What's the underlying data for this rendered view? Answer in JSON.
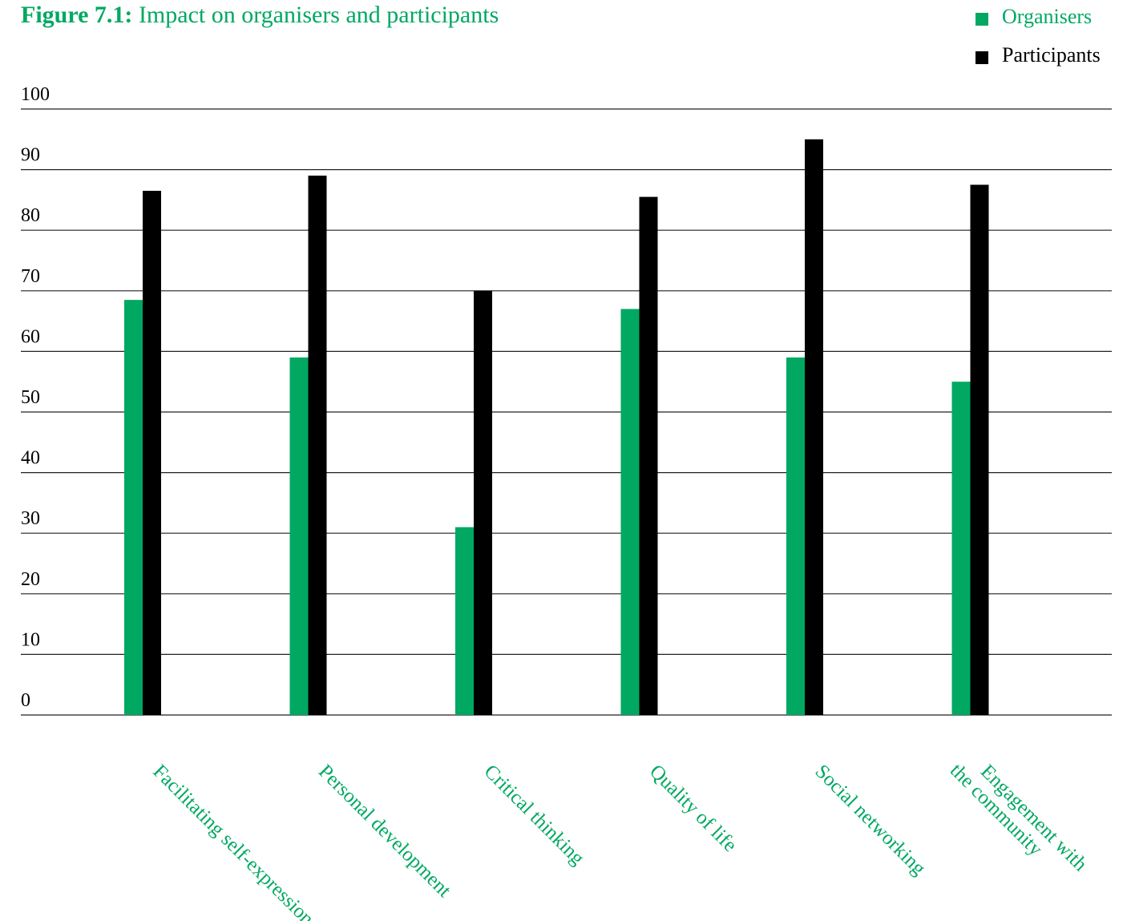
{
  "title": {
    "prefix": "Figure 7.1:",
    "text": "Impact on organisers and participants"
  },
  "colors": {
    "organisers": "#00a862",
    "participants": "#000000",
    "label": "#00a862",
    "grid": "#222222"
  },
  "legend": [
    {
      "name": "Organisers",
      "color": "#00a862"
    },
    {
      "name": "Participants",
      "color": "#000000"
    }
  ],
  "chart_data": {
    "type": "bar",
    "title": "Figure 7.1: Impact on organisers and participants",
    "xlabel": "",
    "ylabel": "",
    "ylim": [
      0,
      100
    ],
    "yticks": [
      0,
      10,
      20,
      30,
      40,
      50,
      60,
      70,
      80,
      90,
      100
    ],
    "grid": true,
    "legend_position": "top-right",
    "categories": [
      "Facilitating self-expression",
      "Personal development",
      "Critical thinking",
      "Quality of life",
      "Social networking",
      "Engagement with\nthe community"
    ],
    "series": [
      {
        "name": "Organisers",
        "values": [
          68.5,
          59,
          31,
          67,
          59,
          55
        ]
      },
      {
        "name": "Participants",
        "values": [
          86.5,
          89,
          70,
          85.5,
          95,
          87.5
        ]
      }
    ]
  }
}
